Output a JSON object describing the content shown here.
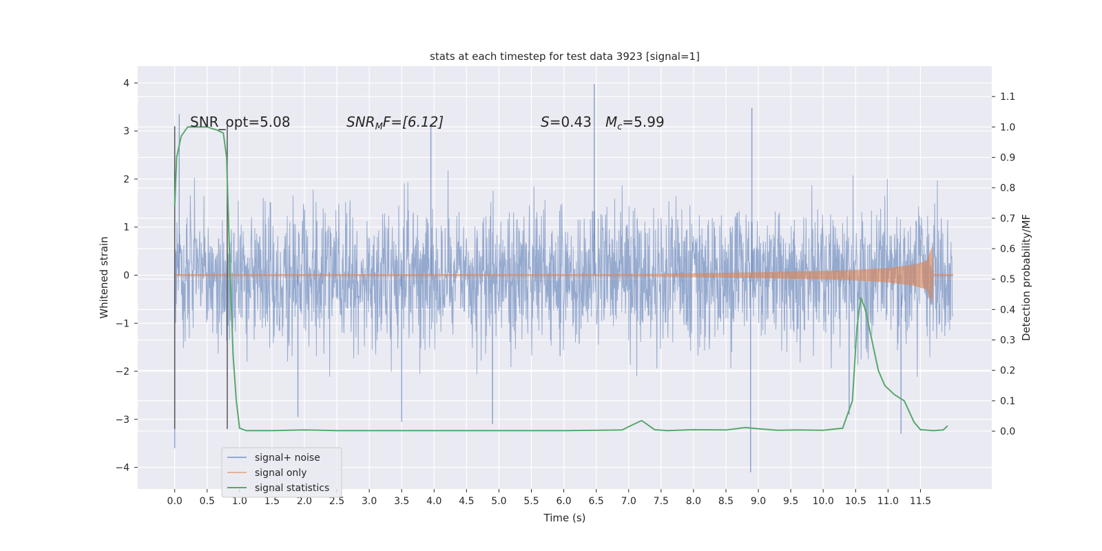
{
  "chart_data": {
    "type": "line",
    "title": "stats at each timestep for test data 3923 [signal=1]",
    "xlabel": "Time (s)",
    "ylabel_left": "Whitened strain",
    "ylabel_right": "Detection probability/MF",
    "xlim": [
      -0.57,
      12.6
    ],
    "ylim_left": [
      -4.45,
      4.35
    ],
    "ylim_right": [
      -0.19,
      1.2
    ],
    "x_ticks": [
      0.0,
      0.5,
      1.0,
      1.5,
      2.0,
      2.5,
      3.0,
      3.5,
      4.0,
      4.5,
      5.0,
      5.5,
      6.0,
      6.5,
      7.0,
      7.5,
      8.0,
      8.5,
      9.0,
      9.5,
      10.0,
      10.5,
      11.0,
      11.5
    ],
    "x_tick_labels": [
      "0.0",
      "0.5",
      "1.0",
      "1.5",
      "2.0",
      "2.5",
      "3.0",
      "3.5",
      "4.0",
      "4.5",
      "5.0",
      "5.5",
      "6.0",
      "6.5",
      "7.0",
      "7.5",
      "8.0",
      "8.5",
      "9.0",
      "9.5",
      "10.0",
      "10.5",
      "11.0",
      "11.5"
    ],
    "y_left_ticks": [
      -4,
      -3,
      -2,
      -1,
      0,
      1,
      2,
      3,
      4
    ],
    "y_left_tick_labels": [
      "−4",
      "−3",
      "−2",
      "−1",
      "0",
      "1",
      "2",
      "3",
      "4"
    ],
    "y_right_ticks": [
      0.0,
      0.1,
      0.2,
      0.3,
      0.4,
      0.5,
      0.6,
      0.7,
      0.8,
      0.9,
      1.0,
      1.1
    ],
    "y_right_tick_labels": [
      "0.0",
      "0.1",
      "0.2",
      "0.3",
      "0.4",
      "0.5",
      "0.6",
      "0.7",
      "0.8",
      "0.9",
      "1.0",
      "1.1"
    ],
    "grid": true,
    "legend_position": "lower-left",
    "annotations": {
      "snr_opt": "SNR_opt=5.08",
      "snr_mf": "SNR",
      "snr_mf_sub": "M",
      "snr_mf_rest": "F=[6.12]",
      "s_label": "S",
      "s_value": "=0.43",
      "mc_label": "M",
      "mc_sub": "c",
      "mc_value": "=5.99"
    },
    "window_markers_x": [
      0.0,
      0.81
    ],
    "window_marker_y": [
      -3.2,
      3.1
    ],
    "noise_envelope": {
      "x": [
        0.0,
        12.0
      ],
      "typical_max": 2.2,
      "typical_min": -2.3,
      "spikes": [
        [
          0.07,
          3.35
        ],
        [
          0.0,
          -3.6
        ],
        [
          6.47,
          3.98
        ],
        [
          8.9,
          3.48
        ],
        [
          8.88,
          -4.1
        ],
        [
          3.5,
          -3.05
        ],
        [
          4.9,
          -3.1
        ],
        [
          11.2,
          -3.3
        ],
        [
          10.4,
          -2.9
        ],
        [
          1.9,
          -2.95
        ],
        [
          3.95,
          3.15
        ]
      ]
    },
    "signal_envelope": {
      "x": [
        0.0,
        7.0,
        8.0,
        9.0,
        10.0,
        10.5,
        11.0,
        11.4,
        11.6,
        11.68,
        11.7,
        12.0
      ],
      "amplitude": [
        0.02,
        0.02,
        0.04,
        0.06,
        0.09,
        0.11,
        0.15,
        0.22,
        0.3,
        0.6,
        0.02,
        0.02
      ]
    },
    "series": [
      {
        "name": "signal+ noise",
        "color": "#4c72b0"
      },
      {
        "name": "signal only",
        "color": "#dd8452"
      },
      {
        "name": "signal statistics",
        "color": "#55a868",
        "axis": "right",
        "x": [
          0.0,
          0.03,
          0.1,
          0.2,
          0.3,
          0.5,
          0.65,
          0.75,
          0.8,
          0.85,
          0.9,
          0.95,
          1.0,
          1.1,
          1.5,
          2.0,
          2.5,
          3.0,
          4.0,
          5.0,
          6.0,
          6.9,
          7.05,
          7.2,
          7.3,
          7.4,
          7.6,
          8.0,
          8.5,
          8.8,
          9.0,
          9.3,
          9.6,
          10.0,
          10.3,
          10.45,
          10.52,
          10.58,
          10.65,
          10.75,
          10.85,
          10.95,
          11.1,
          11.25,
          11.4,
          11.5,
          11.7,
          11.85,
          11.92
        ],
        "y": [
          0.74,
          0.9,
          0.97,
          1.0,
          1.0,
          1.0,
          0.99,
          0.98,
          0.9,
          0.55,
          0.25,
          0.1,
          0.01,
          0.002,
          0.002,
          0.004,
          0.002,
          0.002,
          0.002,
          0.002,
          0.002,
          0.004,
          0.02,
          0.035,
          0.02,
          0.005,
          0.002,
          0.005,
          0.004,
          0.012,
          0.008,
          0.003,
          0.004,
          0.003,
          0.01,
          0.1,
          0.34,
          0.44,
          0.4,
          0.3,
          0.2,
          0.15,
          0.12,
          0.1,
          0.03,
          0.005,
          0.002,
          0.004,
          0.018
        ]
      }
    ]
  }
}
